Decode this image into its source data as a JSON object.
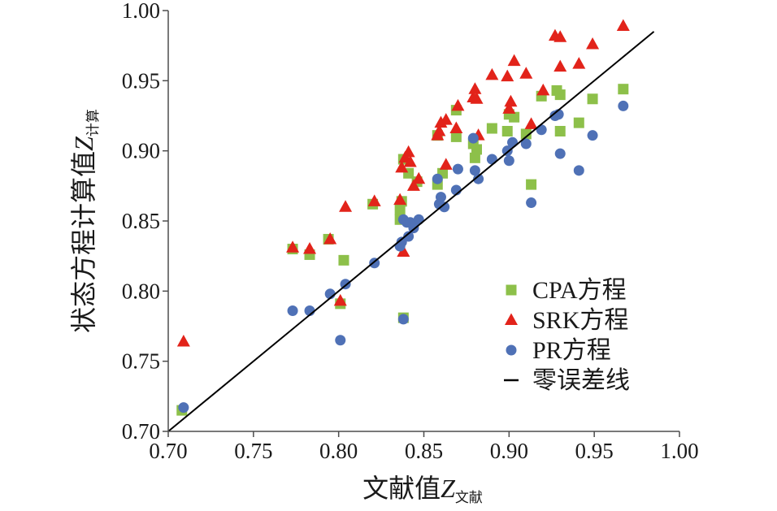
{
  "chart_data": {
    "type": "scatter",
    "xlabel": {
      "text": "文献值",
      "var": "Z",
      "sub": "文献"
    },
    "ylabel": {
      "text": "状态方程计算值",
      "var": "Z",
      "sub": "计算"
    },
    "xlim": [
      0.7,
      1.0
    ],
    "ylim": [
      0.7,
      1.0
    ],
    "xticks": [
      "0.70",
      "0.75",
      "0.80",
      "0.85",
      "0.90",
      "0.95",
      "1.00"
    ],
    "yticks": [
      "0.70",
      "0.75",
      "0.80",
      "0.85",
      "0.90",
      "0.95",
      "1.00"
    ],
    "grid": false,
    "legend": "right",
    "series": [
      {
        "name": "CPA方程",
        "marker": "square",
        "color": "#8dc04a",
        "points": [
          [
            0.708,
            0.715
          ],
          [
            0.773,
            0.83
          ],
          [
            0.783,
            0.826
          ],
          [
            0.794,
            0.837
          ],
          [
            0.801,
            0.791
          ],
          [
            0.803,
            0.822
          ],
          [
            0.82,
            0.862
          ],
          [
            0.836,
            0.851
          ],
          [
            0.836,
            0.858
          ],
          [
            0.837,
            0.864
          ],
          [
            0.838,
            0.894
          ],
          [
            0.838,
            0.781
          ],
          [
            0.841,
            0.884
          ],
          [
            0.846,
            0.878
          ],
          [
            0.858,
            0.876
          ],
          [
            0.858,
            0.911
          ],
          [
            0.861,
            0.884
          ],
          [
            0.869,
            0.91
          ],
          [
            0.869,
            0.929
          ],
          [
            0.879,
            0.905
          ],
          [
            0.88,
            0.895
          ],
          [
            0.881,
            0.901
          ],
          [
            0.89,
            0.916
          ],
          [
            0.899,
            0.914
          ],
          [
            0.9,
            0.926
          ],
          [
            0.903,
            0.924
          ],
          [
            0.91,
            0.912
          ],
          [
            0.913,
            0.876
          ],
          [
            0.919,
            0.939
          ],
          [
            0.928,
            0.943
          ],
          [
            0.93,
            0.914
          ],
          [
            0.93,
            0.94
          ],
          [
            0.941,
            0.92
          ],
          [
            0.949,
            0.937
          ],
          [
            0.967,
            0.944
          ]
        ]
      },
      {
        "name": "SRK方程",
        "marker": "triangle",
        "color": "#e2231a",
        "points": [
          [
            0.709,
            0.764
          ],
          [
            0.773,
            0.831
          ],
          [
            0.783,
            0.83
          ],
          [
            0.795,
            0.837
          ],
          [
            0.801,
            0.793
          ],
          [
            0.804,
            0.86
          ],
          [
            0.821,
            0.864
          ],
          [
            0.836,
            0.865
          ],
          [
            0.837,
            0.888
          ],
          [
            0.838,
            0.828
          ],
          [
            0.839,
            0.895
          ],
          [
            0.841,
            0.899
          ],
          [
            0.842,
            0.892
          ],
          [
            0.844,
            0.875
          ],
          [
            0.847,
            0.88
          ],
          [
            0.858,
            0.911
          ],
          [
            0.859,
            0.914
          ],
          [
            0.86,
            0.92
          ],
          [
            0.863,
            0.922
          ],
          [
            0.863,
            0.89
          ],
          [
            0.869,
            0.916
          ],
          [
            0.87,
            0.932
          ],
          [
            0.879,
            0.938
          ],
          [
            0.88,
            0.944
          ],
          [
            0.881,
            0.937
          ],
          [
            0.882,
            0.911
          ],
          [
            0.89,
            0.954
          ],
          [
            0.899,
            0.953
          ],
          [
            0.9,
            0.93
          ],
          [
            0.901,
            0.935
          ],
          [
            0.903,
            0.964
          ],
          [
            0.91,
            0.955
          ],
          [
            0.913,
            0.919
          ],
          [
            0.92,
            0.943
          ],
          [
            0.927,
            0.982
          ],
          [
            0.93,
            0.981
          ],
          [
            0.93,
            0.96
          ],
          [
            0.941,
            0.962
          ],
          [
            0.949,
            0.976
          ],
          [
            0.967,
            0.989
          ]
        ]
      },
      {
        "name": "PR方程",
        "marker": "circle",
        "color": "#4f71b6",
        "points": [
          [
            0.709,
            0.717
          ],
          [
            0.773,
            0.786
          ],
          [
            0.783,
            0.786
          ],
          [
            0.795,
            0.798
          ],
          [
            0.801,
            0.765
          ],
          [
            0.804,
            0.805
          ],
          [
            0.821,
            0.82
          ],
          [
            0.836,
            0.832
          ],
          [
            0.837,
            0.835
          ],
          [
            0.838,
            0.851
          ],
          [
            0.838,
            0.78
          ],
          [
            0.84,
            0.849
          ],
          [
            0.841,
            0.839
          ],
          [
            0.842,
            0.849
          ],
          [
            0.844,
            0.845
          ],
          [
            0.847,
            0.851
          ],
          [
            0.858,
            0.88
          ],
          [
            0.859,
            0.862
          ],
          [
            0.86,
            0.867
          ],
          [
            0.862,
            0.86
          ],
          [
            0.869,
            0.872
          ],
          [
            0.87,
            0.887
          ],
          [
            0.879,
            0.909
          ],
          [
            0.88,
            0.886
          ],
          [
            0.882,
            0.88
          ],
          [
            0.89,
            0.894
          ],
          [
            0.899,
            0.9
          ],
          [
            0.9,
            0.893
          ],
          [
            0.902,
            0.906
          ],
          [
            0.91,
            0.905
          ],
          [
            0.913,
            0.863
          ],
          [
            0.919,
            0.915
          ],
          [
            0.927,
            0.925
          ],
          [
            0.929,
            0.926
          ],
          [
            0.93,
            0.898
          ],
          [
            0.941,
            0.886
          ],
          [
            0.949,
            0.911
          ],
          [
            0.967,
            0.932
          ]
        ]
      },
      {
        "name": "零误差线",
        "marker": "line",
        "color": "#000000",
        "points": [
          [
            0.7,
            0.7
          ],
          [
            0.985,
            0.985
          ]
        ]
      }
    ]
  }
}
